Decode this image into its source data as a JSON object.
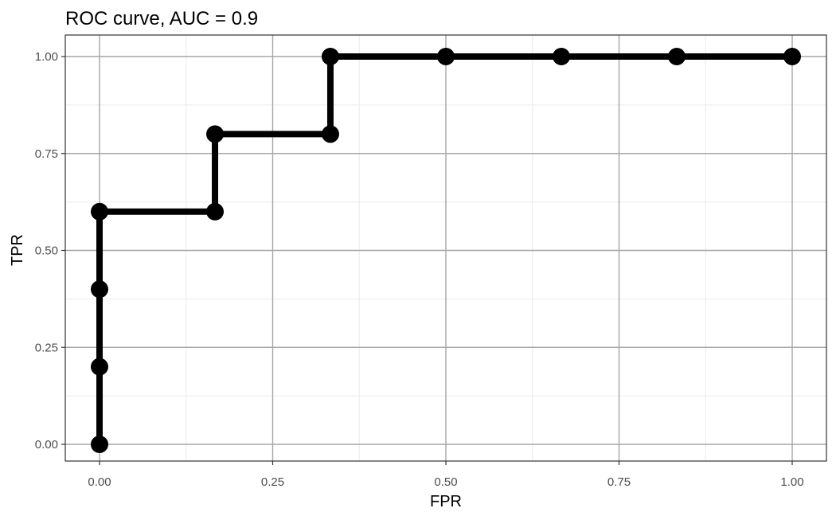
{
  "chart_data": {
    "type": "line",
    "title": "ROC curve, AUC = 0.9",
    "xlabel": "FPR",
    "ylabel": "TPR",
    "xlim": [
      0,
      1
    ],
    "ylim": [
      0,
      1
    ],
    "x_ticks": [
      0,
      0.25,
      0.5,
      0.75,
      1
    ],
    "y_ticks": [
      0,
      0.25,
      0.5,
      0.75,
      1
    ],
    "x_tick_labels": [
      "0.00",
      "0.25",
      "0.50",
      "0.75",
      "1.00"
    ],
    "y_tick_labels": [
      "0.00",
      "0.25",
      "0.50",
      "0.75",
      "1.00"
    ],
    "grid": true,
    "legend": "none",
    "series": [
      {
        "x": [
          0,
          0,
          0,
          0,
          0.1667,
          0.1667,
          0.3333,
          0.3333,
          0.5,
          0.6667,
          0.8333,
          1
        ],
        "y": [
          0,
          0.2,
          0.4,
          0.6,
          0.6,
          0.8,
          0.8,
          1,
          1,
          1,
          1,
          1
        ],
        "color": "#000000"
      }
    ]
  }
}
